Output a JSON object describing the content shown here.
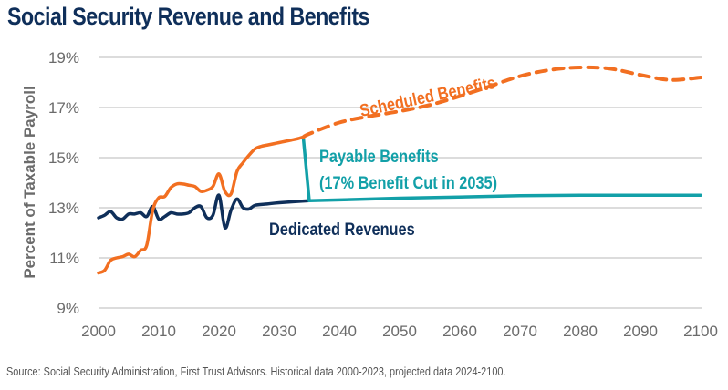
{
  "title": "Social Security Revenue and Benefits",
  "source": "Source: Social Security Administration, First Trust Advisors. Historical data 2000-2023, projected data 2024-2100.",
  "colors": {
    "scheduled": "#f26f21",
    "revenues": "#0f2f5a",
    "payable": "#12a0a8",
    "grid": "#d0d0d0",
    "tick": "#6b6b6b"
  },
  "chart_data": {
    "type": "line",
    "title": "Social Security Revenue and Benefits",
    "xlabel": "",
    "ylabel": "Percent of Taxable Payroll",
    "xlim": [
      2000,
      2100
    ],
    "ylim": [
      9,
      19
    ],
    "x_ticks": [
      2000,
      2010,
      2020,
      2030,
      2040,
      2050,
      2060,
      2070,
      2080,
      2090,
      2100
    ],
    "x_tick_labels": [
      "2000",
      "2010",
      "2020",
      "2030",
      "2040",
      "2050",
      "2060",
      "2070",
      "2080",
      "2090",
      "2100"
    ],
    "y_ticks": [
      9,
      11,
      13,
      15,
      17,
      19
    ],
    "y_tick_labels": [
      "9%",
      "11%",
      "13%",
      "15%",
      "17%",
      "19%"
    ],
    "grid": "horizontal",
    "series": [
      {
        "name": "Scheduled Benefits",
        "key": "scheduled_hist",
        "style": "solid",
        "x": [
          2000,
          2001,
          2002,
          2003,
          2004,
          2005,
          2006,
          2007,
          2008,
          2009,
          2010,
          2011,
          2012,
          2013,
          2014,
          2015,
          2016,
          2017,
          2018,
          2019,
          2020,
          2021,
          2022,
          2023,
          2024,
          2025,
          2026,
          2027,
          2028,
          2029,
          2030,
          2031,
          2032,
          2033,
          2034
        ],
        "y": [
          10.4,
          10.5,
          10.9,
          11.0,
          11.05,
          11.15,
          11.05,
          11.3,
          11.5,
          12.9,
          13.4,
          13.45,
          13.8,
          13.95,
          13.95,
          13.9,
          13.85,
          13.65,
          13.7,
          13.85,
          14.35,
          13.65,
          13.55,
          14.45,
          14.8,
          15.1,
          15.35,
          15.45,
          15.5,
          15.55,
          15.6,
          15.65,
          15.7,
          15.75,
          15.82
        ]
      },
      {
        "name": "Scheduled Benefits",
        "key": "scheduled_proj",
        "style": "dashed",
        "x": [
          2034,
          2035,
          2040,
          2045,
          2050,
          2055,
          2060,
          2065,
          2070,
          2075,
          2080,
          2085,
          2090,
          2095,
          2100
        ],
        "y": [
          15.82,
          15.95,
          16.4,
          16.65,
          16.85,
          17.1,
          17.45,
          17.85,
          18.25,
          18.5,
          18.6,
          18.55,
          18.3,
          18.1,
          18.2
        ]
      },
      {
        "name": "Dedicated Revenues",
        "key": "revenues",
        "style": "solid",
        "x": [
          2000,
          2001,
          2002,
          2003,
          2004,
          2005,
          2006,
          2007,
          2008,
          2009,
          2010,
          2011,
          2012,
          2013,
          2014,
          2015,
          2016,
          2017,
          2018,
          2019,
          2020,
          2021,
          2022,
          2023,
          2024,
          2025,
          2026,
          2028,
          2030,
          2035
        ],
        "y": [
          12.6,
          12.7,
          12.85,
          12.6,
          12.55,
          12.75,
          12.75,
          12.8,
          12.65,
          13.05,
          12.55,
          12.65,
          12.8,
          12.75,
          12.75,
          12.8,
          13.0,
          13.05,
          12.6,
          12.7,
          13.5,
          12.2,
          12.9,
          13.35,
          13.0,
          12.95,
          13.1,
          13.15,
          13.2,
          13.28
        ]
      },
      {
        "name": "Payable Benefits (17% Benefit Cut in 2035)",
        "key": "payable",
        "style": "solid",
        "x": [
          2034,
          2035,
          2050,
          2070,
          2080,
          2100
        ],
        "y": [
          15.82,
          13.28,
          13.38,
          13.48,
          13.5,
          13.5
        ]
      }
    ],
    "annotations": [
      {
        "text": "Scheduled Benefits",
        "series": "scheduled"
      },
      {
        "text": "Payable Benefits",
        "series": "payable"
      },
      {
        "text": "(17% Benefit Cut in 2035)",
        "series": "payable"
      },
      {
        "text": "Dedicated Revenues",
        "series": "revenues"
      }
    ]
  }
}
